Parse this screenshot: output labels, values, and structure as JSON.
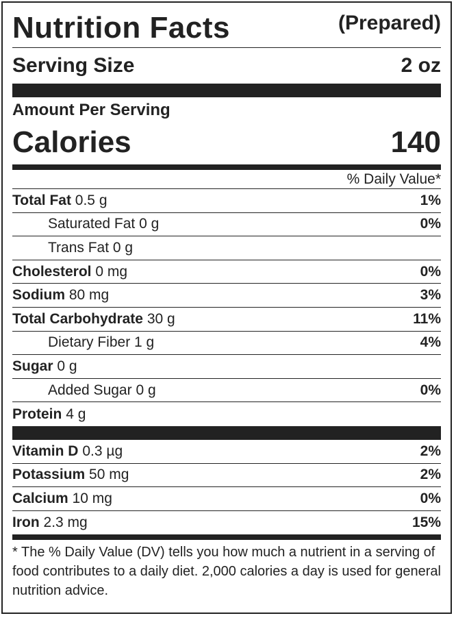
{
  "header": {
    "title": "Nutrition Facts",
    "qualifier": "(Prepared)"
  },
  "serving": {
    "label": "Serving Size",
    "value": "2 oz"
  },
  "amount_per_serving": "Amount Per Serving",
  "calories": {
    "label": "Calories",
    "value": "140"
  },
  "daily_value_header": "% Daily Value*",
  "nutrients": [
    {
      "name": "Total Fat",
      "amount": "0.5 g",
      "dv": "1%"
    },
    {
      "name": "Saturated Fat",
      "amount": "0 g",
      "dv": "0%"
    },
    {
      "name": "Trans Fat",
      "amount": "0 g",
      "dv": ""
    },
    {
      "name": "Cholesterol",
      "amount": "0 mg",
      "dv": "0%"
    },
    {
      "name": "Sodium",
      "amount": "80 mg",
      "dv": "3%"
    },
    {
      "name": "Total Carbohydrate",
      "amount": "30 g",
      "dv": "11%"
    },
    {
      "name": "Dietary Fiber",
      "amount": "1 g",
      "dv": "4%"
    },
    {
      "name": "Sugar",
      "amount": "0 g",
      "dv": ""
    },
    {
      "name": "Added Sugar",
      "amount": "0 g",
      "dv": "0%"
    },
    {
      "name": "Protein",
      "amount": "4 g",
      "dv": ""
    }
  ],
  "micronutrients": [
    {
      "name": "Vitamin D",
      "amount": "0.3 µg",
      "dv": "2%"
    },
    {
      "name": "Potassium",
      "amount": "50 mg",
      "dv": "2%"
    },
    {
      "name": "Calcium",
      "amount": "10 mg",
      "dv": "0%"
    },
    {
      "name": "Iron",
      "amount": "2.3 mg",
      "dv": "15%"
    }
  ],
  "footnote": "* The % Daily Value (DV) tells you how much a nutrient in a serving of food contributes to a daily diet. 2,000 calories a day is used for general nutrition advice."
}
